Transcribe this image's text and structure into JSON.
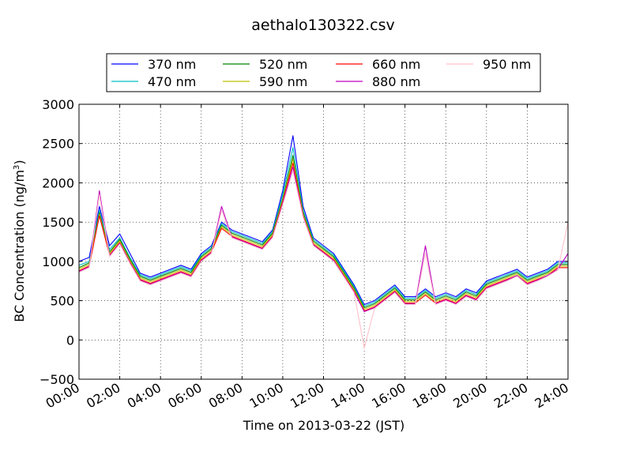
{
  "chart_data": {
    "type": "line",
    "title": "aethalo130322.csv",
    "xlabel": "Time on 2013-03-22 (JST)",
    "ylabel": "BC Concentration (ng/m",
    "ylabel_sup": "3",
    "ylabel_tail": ")",
    "xlim": [
      0,
      24
    ],
    "ylim": [
      -500,
      3000
    ],
    "x_unit": "hours",
    "x_ticks": [
      0,
      2,
      4,
      6,
      8,
      10,
      12,
      14,
      16,
      18,
      20,
      22,
      24
    ],
    "x_tick_labels": [
      "00:00",
      "02:00",
      "04:00",
      "06:00",
      "08:00",
      "10:00",
      "12:00",
      "14:00",
      "16:00",
      "18:00",
      "20:00",
      "22:00",
      "24:00"
    ],
    "y_ticks": [
      -500,
      0,
      500,
      1000,
      1500,
      2000,
      2500,
      3000
    ],
    "y_tick_labels": [
      "−500",
      "0",
      "500",
      "1000",
      "1500",
      "2000",
      "2500",
      "3000"
    ],
    "grid": true,
    "legend_position": "top",
    "x": [
      0,
      0.5,
      1,
      1.5,
      2,
      2.5,
      3,
      3.5,
      4,
      4.5,
      5,
      5.5,
      6,
      6.5,
      7,
      7.5,
      8,
      8.5,
      9,
      9.5,
      10,
      10.5,
      11,
      11.5,
      12,
      12.5,
      13,
      13.5,
      14,
      14.5,
      15,
      15.5,
      16,
      16.5,
      17,
      17.5,
      18,
      18.5,
      19,
      19.5,
      20,
      20.5,
      21,
      21.5,
      22,
      22.5,
      23,
      23.5,
      24
    ],
    "series": [
      {
        "name": "370 nm",
        "color": "#0000ff",
        "values": [
          1000,
          1050,
          1700,
          1200,
          1350,
          1100,
          850,
          800,
          850,
          900,
          950,
          900,
          1100,
          1200,
          1500,
          1400,
          1350,
          1300,
          1250,
          1400,
          1900,
          2600,
          1700,
          1300,
          1200,
          1100,
          900,
          700,
          450,
          500,
          600,
          700,
          550,
          550,
          650,
          550,
          600,
          550,
          650,
          600,
          750,
          800,
          850,
          900,
          800,
          850,
          900,
          1000,
          1000
        ]
      },
      {
        "name": "470 nm",
        "color": "#00bfbf",
        "values": [
          950,
          1000,
          1650,
          1150,
          1300,
          1050,
          830,
          780,
          830,
          880,
          930,
          880,
          1080,
          1180,
          1480,
          1380,
          1330,
          1280,
          1230,
          1380,
          1850,
          2450,
          1650,
          1280,
          1180,
          1080,
          880,
          680,
          430,
          480,
          580,
          680,
          530,
          530,
          630,
          530,
          580,
          530,
          630,
          580,
          730,
          780,
          830,
          880,
          780,
          830,
          880,
          980,
          980
        ]
      },
      {
        "name": "520 nm",
        "color": "#008000",
        "values": [
          920,
          980,
          1620,
          1120,
          1280,
          1030,
          810,
          760,
          810,
          860,
          910,
          860,
          1060,
          1160,
          1460,
          1360,
          1310,
          1260,
          1210,
          1360,
          1800,
          2350,
          1620,
          1260,
          1160,
          1060,
          860,
          660,
          410,
          460,
          560,
          660,
          510,
          510,
          610,
          510,
          560,
          510,
          610,
          560,
          710,
          760,
          810,
          860,
          760,
          810,
          860,
          960,
          960
        ]
      },
      {
        "name": "590 nm",
        "color": "#bfbf00",
        "values": [
          900,
          960,
          1600,
          1100,
          1260,
          1010,
          790,
          740,
          790,
          840,
          890,
          840,
          1040,
          1140,
          1440,
          1340,
          1290,
          1240,
          1190,
          1340,
          1780,
          2300,
          1600,
          1240,
          1140,
          1040,
          840,
          640,
          390,
          440,
          540,
          640,
          490,
          490,
          590,
          490,
          540,
          490,
          590,
          540,
          690,
          740,
          790,
          840,
          740,
          790,
          840,
          940,
          940
        ]
      },
      {
        "name": "660 nm",
        "color": "#ff0000",
        "values": [
          880,
          940,
          1580,
          1080,
          1240,
          990,
          770,
          720,
          770,
          820,
          870,
          820,
          1020,
          1120,
          1420,
          1320,
          1270,
          1220,
          1170,
          1320,
          1760,
          2250,
          1580,
          1220,
          1120,
          1020,
          820,
          620,
          370,
          420,
          520,
          620,
          470,
          470,
          570,
          470,
          520,
          470,
          570,
          520,
          670,
          720,
          770,
          820,
          720,
          770,
          820,
          920,
          920
        ]
      },
      {
        "name": "880 nm",
        "color": "#bf00bf",
        "values": [
          870,
          930,
          1900,
          1070,
          1230,
          980,
          760,
          710,
          760,
          810,
          860,
          810,
          1010,
          1110,
          1700,
          1310,
          1260,
          1210,
          1160,
          1310,
          1740,
          2200,
          1570,
          1210,
          1110,
          1010,
          810,
          610,
          360,
          410,
          510,
          610,
          460,
          460,
          1200,
          460,
          510,
          460,
          560,
          510,
          660,
          710,
          760,
          820,
          710,
          760,
          820,
          900,
          1100
        ]
      },
      {
        "name": "950 nm",
        "color": "#ffc0cb",
        "values": [
          860,
          920,
          1850,
          1060,
          1220,
          970,
          750,
          700,
          750,
          800,
          850,
          800,
          1000,
          1100,
          1650,
          1300,
          1250,
          1200,
          1150,
          1300,
          1720,
          2150,
          1560,
          1200,
          1100,
          1000,
          800,
          600,
          -100,
          400,
          500,
          600,
          450,
          450,
          1100,
          450,
          500,
          450,
          550,
          500,
          650,
          700,
          750,
          810,
          700,
          750,
          810,
          890,
          1500
        ]
      }
    ]
  }
}
